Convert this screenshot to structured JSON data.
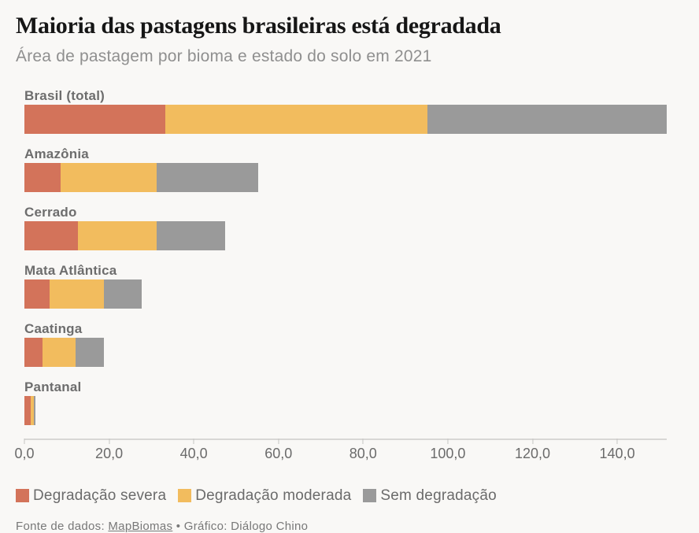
{
  "header": {
    "title": "Maioria das pastagens brasileiras está degradada",
    "subtitle": "Área de pastagem por bioma e estado do solo em 2021"
  },
  "chart_data": {
    "type": "bar",
    "orientation": "horizontal",
    "stacked": true,
    "categories": [
      "Brasil (total)",
      "Amazônia",
      "Cerrado",
      "Mata Atlântica",
      "Caatinga",
      "Pantanal"
    ],
    "series": [
      {
        "name": "Degradação severa",
        "color": "#d3735a",
        "values": [
          33.2,
          8.6,
          12.7,
          5.9,
          4.2,
          1.4
        ]
      },
      {
        "name": "Degradação moderada",
        "color": "#f2bc5e",
        "values": [
          62.0,
          22.6,
          18.6,
          12.9,
          7.8,
          0.9
        ]
      },
      {
        "name": "Sem degradação",
        "color": "#9a9a9a",
        "values": [
          56.5,
          24.1,
          16.2,
          8.9,
          6.8,
          0.4
        ]
      }
    ],
    "x_axis": {
      "tick_labels": [
        "0,0",
        "20,0",
        "40,0",
        "60,0",
        "80,0",
        "100,0",
        "120,0",
        "140,0"
      ],
      "tick_values": [
        0,
        20,
        40,
        60,
        80,
        100,
        120,
        140
      ],
      "max": 151.7
    },
    "legend_position": "bottom",
    "grid": false
  },
  "theme": {
    "background": "#f9f8f6",
    "axis_line": "#d8d7d5",
    "muted_text": "#6b6b6b"
  },
  "footer": {
    "prefix": "Fonte de dados: ",
    "source_link": "MapBiomas",
    "suffix": " • Gráfico: Diálogo Chino"
  }
}
